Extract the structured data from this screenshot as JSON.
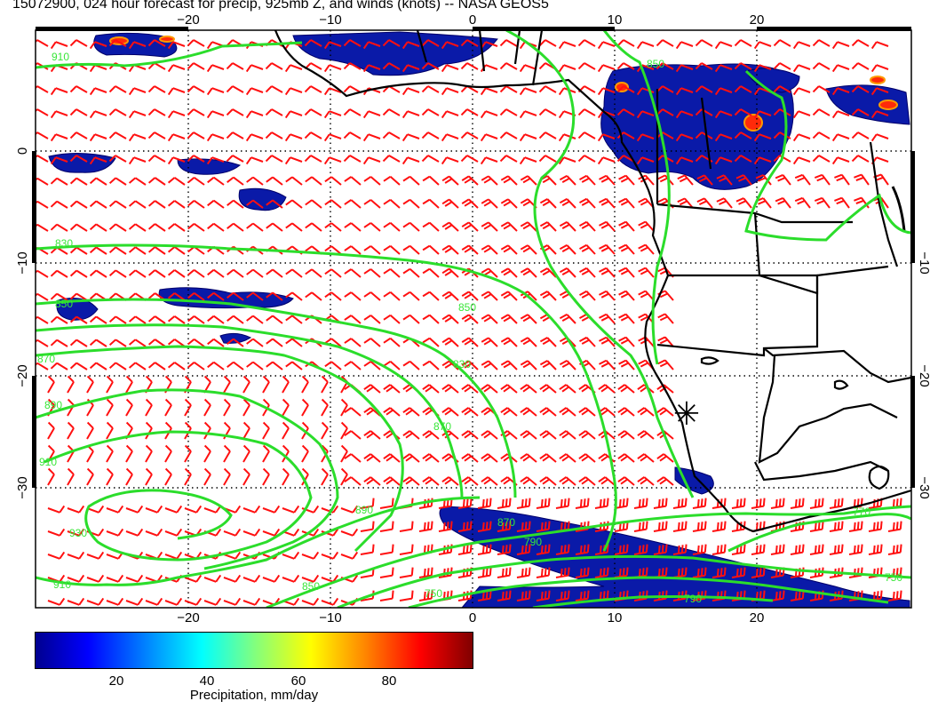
{
  "title": "15072900, 024 hour forecast for precip, 925mb Z, and winds (knots) -- NASA GEOS5",
  "map": {
    "lon_range": [
      -30,
      30
    ],
    "lat_range": [
      -40,
      10
    ],
    "top_lon_labels": [
      "−20",
      "−10",
      "0",
      "10",
      "20"
    ],
    "bottom_lon_labels": [
      "−20",
      "−10",
      "0",
      "10",
      "20"
    ],
    "left_lat_labels": [
      "0",
      "−10",
      "−20",
      "−30"
    ],
    "right_lat_labels": [
      "−10",
      "−20",
      "−30"
    ],
    "contour_labels": [
      "910",
      "850",
      "830",
      "850",
      "870",
      "890",
      "870",
      "850",
      "910",
      "930",
      "910",
      "890",
      "870",
      "850",
      "830",
      "790",
      "750",
      "790",
      "750",
      "770"
    ],
    "marker_symbol": "✳",
    "colors": {
      "contour": "#2bdd2b",
      "barb": "#ff0000",
      "coast": "#000000",
      "precip": "#0a1aa8"
    }
  },
  "colorbar": {
    "ticks": [
      "20",
      "40",
      "60",
      "80"
    ],
    "tick_values": [
      20,
      40,
      60,
      80
    ],
    "range": [
      0,
      100
    ],
    "title": "Precipitation, mm/day"
  }
}
